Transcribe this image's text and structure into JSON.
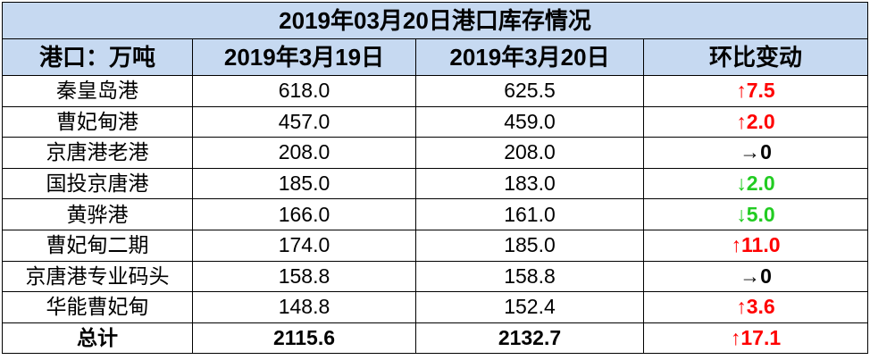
{
  "table": {
    "title": "2019年03月20日港口库存情况",
    "header": [
      "港口：万吨",
      "2019年3月19日",
      "2019年3月20日",
      "环比变动"
    ],
    "rows": [
      [
        "秦皇岛港",
        "618.0",
        "625.5",
        {
          "text": "↑7.5",
          "color": "#ff0000"
        }
      ],
      [
        "曹妃甸港",
        "457.0",
        "459.0",
        {
          "text": "↑2.0",
          "color": "#ff0000"
        }
      ],
      [
        "京唐港老港",
        "208.0",
        "208.0",
        {
          "text": "→0",
          "color": "#000000"
        }
      ],
      [
        "国投京唐港",
        "185.0",
        "183.0",
        {
          "text": "↓2.0",
          "color": "#22cc22"
        }
      ],
      [
        "黄骅港",
        "166.0",
        "161.0",
        {
          "text": "↓5.0",
          "color": "#22cc22"
        }
      ],
      [
        "曹妃甸二期",
        "174.0",
        "185.0",
        {
          "text": "↑11.0",
          "color": "#ff0000"
        }
      ],
      [
        "京唐港专业码头",
        "158.8",
        "158.8",
        {
          "text": "→0",
          "color": "#000000"
        }
      ],
      [
        "华能曹妃甸",
        "148.8",
        "152.4",
        {
          "text": "↑3.6",
          "color": "#ff0000"
        }
      ]
    ],
    "total": [
      "总计",
      "2115.6",
      "2132.7",
      {
        "text": "↑17.1",
        "color": "#ff0000"
      }
    ]
  }
}
